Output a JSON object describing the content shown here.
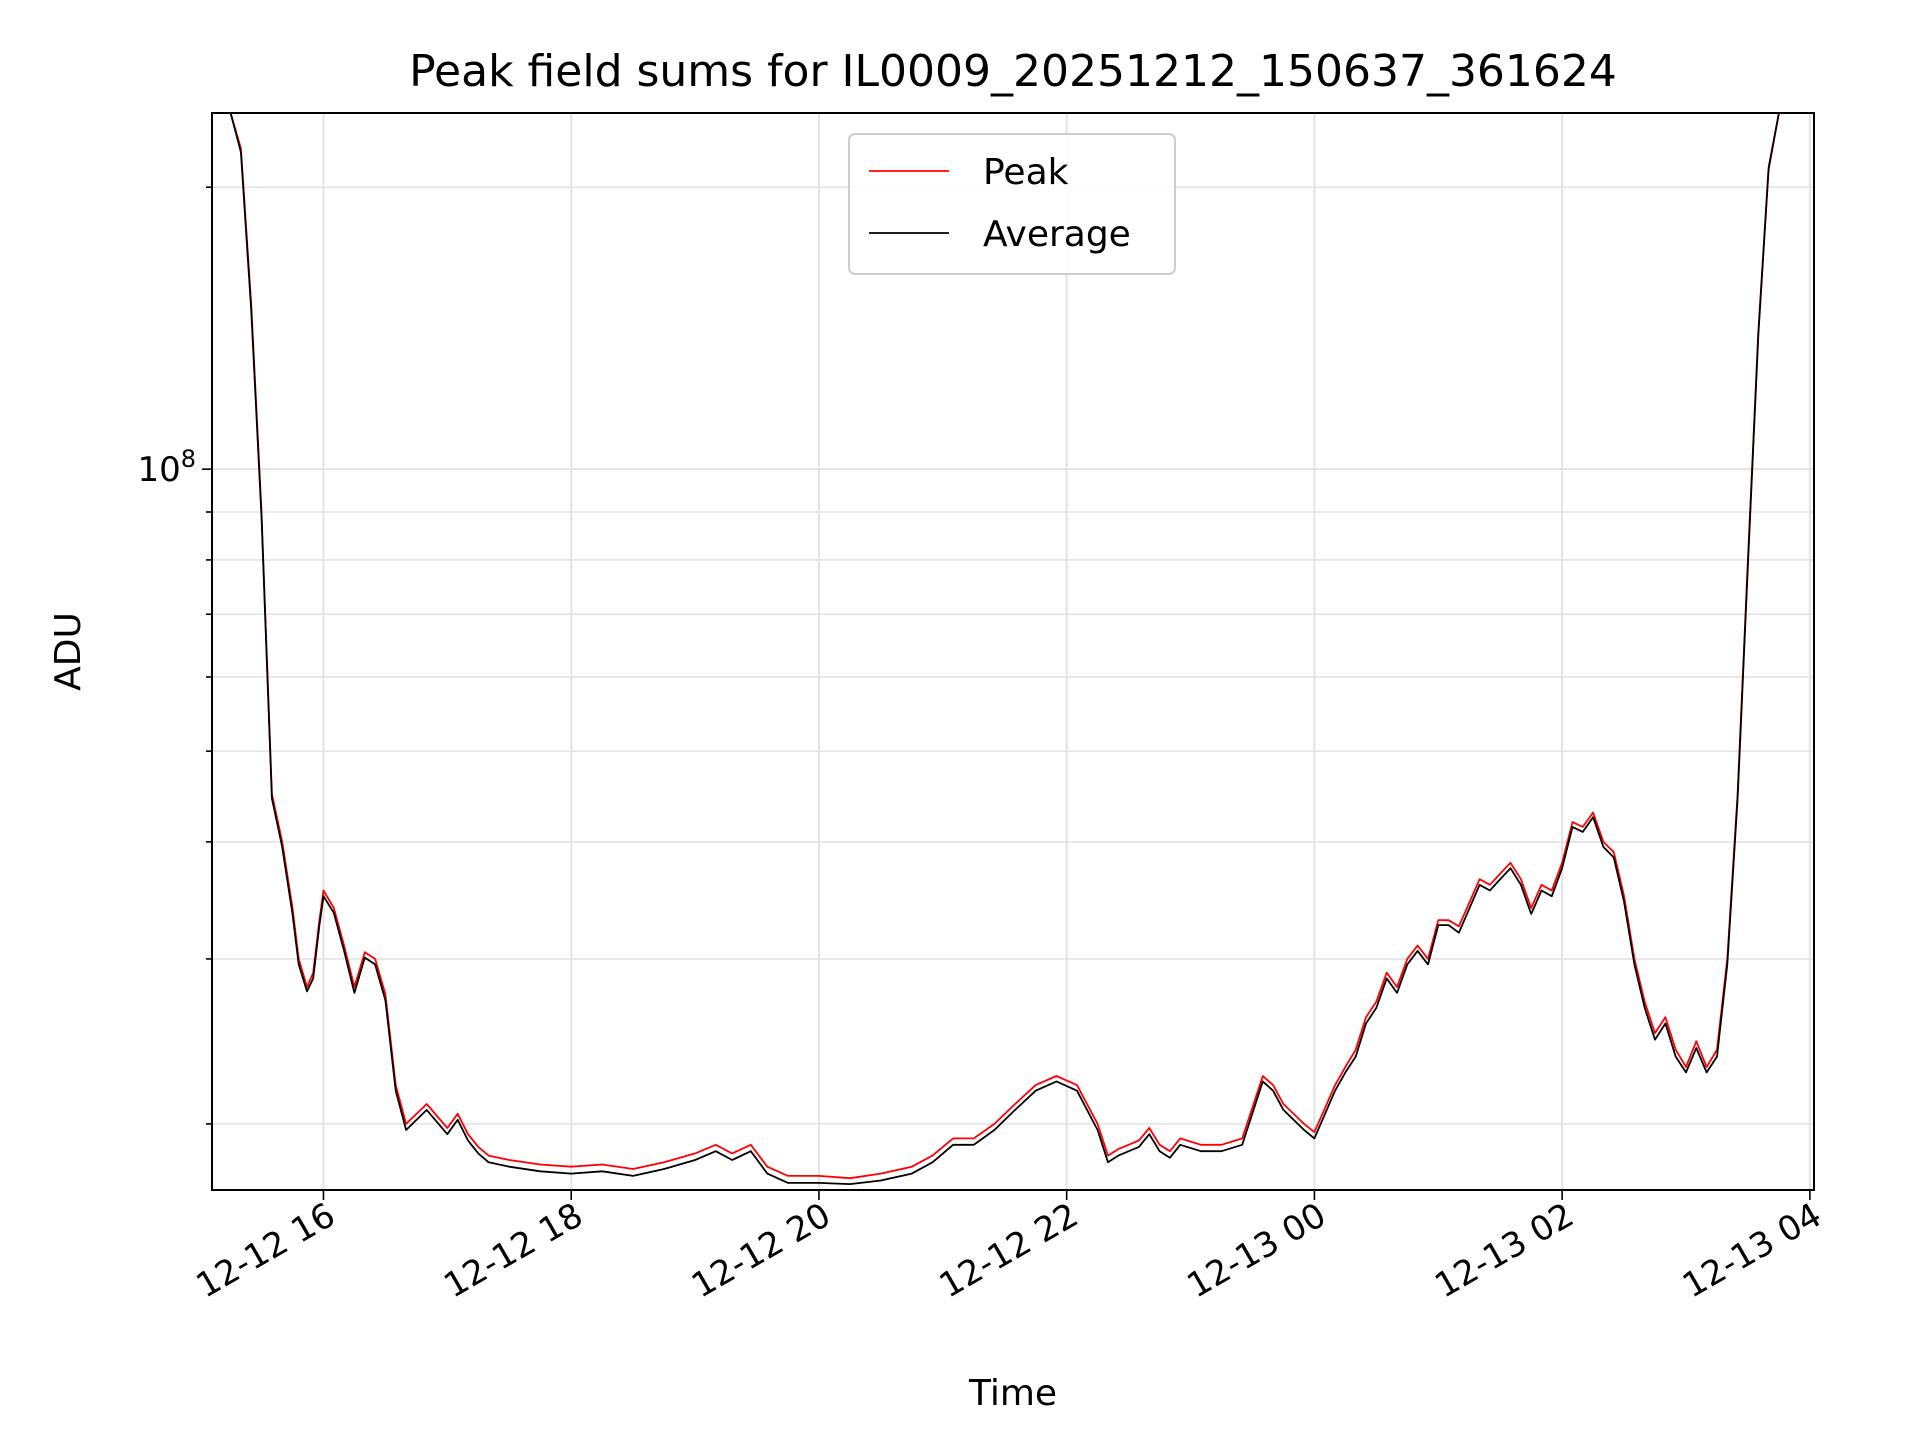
{
  "chart_data": {
    "type": "line",
    "title": "Peak field sums for IL0009_20251212_150637_361624",
    "xlabel": "Time",
    "ylabel": "ADU",
    "y_scale": "log",
    "grid": true,
    "legend": "top-center",
    "xlim": [
      "2025-12-12 15:06",
      "2025-12-13 04:02"
    ],
    "ylim": [
      17000000,
      240000000
    ],
    "x_ticks": [
      "2025-12-12 16:00",
      "2025-12-12 18:00",
      "2025-12-12 20:00",
      "2025-12-12 22:00",
      "2025-12-13 00:00",
      "2025-12-13 02:00",
      "2025-12-13 04:00"
    ],
    "x_tick_labels": [
      "12-12 16",
      "12-12 18",
      "12-12 20",
      "12-12 22",
      "12-13 00",
      "12-13 02",
      "12-13 04"
    ],
    "y_major_tick": 100000000,
    "y_major_tick_label": "10^8",
    "y_major_tick_base": "10",
    "y_major_tick_exp": "8",
    "series": [
      {
        "name": "Peak",
        "color": "#ff0000",
        "x": [
          "2025-12-12 15:06",
          "2025-12-12 15:15",
          "2025-12-12 15:20",
          "2025-12-12 15:25",
          "2025-12-12 15:30",
          "2025-12-12 15:35",
          "2025-12-12 15:40",
          "2025-12-12 15:45",
          "2025-12-12 15:48",
          "2025-12-12 15:52",
          "2025-12-12 15:55",
          "2025-12-12 15:58",
          "2025-12-12 16:00",
          "2025-12-12 16:05",
          "2025-12-12 16:10",
          "2025-12-12 16:15",
          "2025-12-12 16:20",
          "2025-12-12 16:25",
          "2025-12-12 16:30",
          "2025-12-12 16:35",
          "2025-12-12 16:40",
          "2025-12-12 16:50",
          "2025-12-12 17:00",
          "2025-12-12 17:05",
          "2025-12-12 17:10",
          "2025-12-12 17:15",
          "2025-12-12 17:20",
          "2025-12-12 17:30",
          "2025-12-12 17:45",
          "2025-12-12 18:00",
          "2025-12-12 18:15",
          "2025-12-12 18:30",
          "2025-12-12 18:45",
          "2025-12-12 19:00",
          "2025-12-12 19:10",
          "2025-12-12 19:18",
          "2025-12-12 19:27",
          "2025-12-12 19:35",
          "2025-12-12 19:45",
          "2025-12-12 20:00",
          "2025-12-12 20:15",
          "2025-12-12 20:30",
          "2025-12-12 20:45",
          "2025-12-12 20:55",
          "2025-12-12 21:05",
          "2025-12-12 21:15",
          "2025-12-12 21:25",
          "2025-12-12 21:35",
          "2025-12-12 21:45",
          "2025-12-12 21:55",
          "2025-12-12 22:05",
          "2025-12-12 22:15",
          "2025-12-12 22:20",
          "2025-12-12 22:25",
          "2025-12-12 22:35",
          "2025-12-12 22:40",
          "2025-12-12 22:45",
          "2025-12-12 22:50",
          "2025-12-12 22:55",
          "2025-12-12 23:05",
          "2025-12-12 23:15",
          "2025-12-12 23:25",
          "2025-12-12 23:35",
          "2025-12-12 23:40",
          "2025-12-12 23:45",
          "2025-12-12 23:55",
          "2025-12-13 00:00",
          "2025-12-13 00:10",
          "2025-12-13 00:15",
          "2025-12-13 00:20",
          "2025-12-13 00:25",
          "2025-12-13 00:30",
          "2025-12-13 00:35",
          "2025-12-13 00:40",
          "2025-12-13 00:45",
          "2025-12-13 00:50",
          "2025-12-13 00:55",
          "2025-12-13 01:00",
          "2025-12-13 01:05",
          "2025-12-13 01:10",
          "2025-12-13 01:20",
          "2025-12-13 01:25",
          "2025-12-13 01:30",
          "2025-12-13 01:35",
          "2025-12-13 01:40",
          "2025-12-13 01:45",
          "2025-12-13 01:50",
          "2025-12-13 01:55",
          "2025-12-13 02:00",
          "2025-12-13 02:05",
          "2025-12-13 02:10",
          "2025-12-13 02:15",
          "2025-12-13 02:20",
          "2025-12-13 02:25",
          "2025-12-13 02:30",
          "2025-12-13 02:35",
          "2025-12-13 02:40",
          "2025-12-13 02:45",
          "2025-12-13 02:50",
          "2025-12-13 02:55",
          "2025-12-13 03:00",
          "2025-12-13 03:05",
          "2025-12-13 03:10",
          "2025-12-13 03:15",
          "2025-12-13 03:20",
          "2025-12-13 03:25",
          "2025-12-13 03:30",
          "2025-12-13 03:35",
          "2025-12-13 03:40",
          "2025-12-13 03:45",
          "2025-12-13 03:50",
          "2025-12-13 03:55",
          "2025-12-13 04:00"
        ],
        "values": [
          240000000,
          240000000,
          220000000,
          150000000,
          90000000,
          45000000,
          40000000,
          34000000,
          30000000,
          28000000,
          29000000,
          33000000,
          35500000,
          34000000,
          31000000,
          28000000,
          30500000,
          30000000,
          27500000,
          22000000,
          20000000,
          21000000,
          19800000,
          20500000,
          19500000,
          18900000,
          18500000,
          18300000,
          18100000,
          18000000,
          18100000,
          17900000,
          18200000,
          18600000,
          19000000,
          18600000,
          19000000,
          18000000,
          17600000,
          17600000,
          17500000,
          17700000,
          18000000,
          18500000,
          19300000,
          19300000,
          20000000,
          21000000,
          22000000,
          22500000,
          22000000,
          20000000,
          18500000,
          18800000,
          19200000,
          19800000,
          19000000,
          18700000,
          19300000,
          19000000,
          19000000,
          19300000,
          22500000,
          22000000,
          21000000,
          20000000,
          19600000,
          22000000,
          23000000,
          24000000,
          26000000,
          27000000,
          29000000,
          28000000,
          30000000,
          31000000,
          30000000,
          33000000,
          33000000,
          32500000,
          36500000,
          36000000,
          37000000,
          38000000,
          36500000,
          34000000,
          36000000,
          35500000,
          38000000,
          42000000,
          41500000,
          43000000,
          40000000,
          39000000,
          35000000,
          30000000,
          27000000,
          25000000,
          26000000,
          24000000,
          23000000,
          24500000,
          23000000,
          24000000,
          30000000,
          45000000,
          80000000,
          140000000,
          210000000,
          240000000,
          240000000,
          240000000,
          240000000
        ]
      },
      {
        "name": "Average",
        "color": "#000000",
        "x": [
          "2025-12-12 15:06",
          "2025-12-12 15:15",
          "2025-12-12 15:20",
          "2025-12-12 15:25",
          "2025-12-12 15:30",
          "2025-12-12 15:35",
          "2025-12-12 15:40",
          "2025-12-12 15:45",
          "2025-12-12 15:48",
          "2025-12-12 15:52",
          "2025-12-12 15:55",
          "2025-12-12 15:58",
          "2025-12-12 16:00",
          "2025-12-12 16:05",
          "2025-12-12 16:10",
          "2025-12-12 16:15",
          "2025-12-12 16:20",
          "2025-12-12 16:25",
          "2025-12-12 16:30",
          "2025-12-12 16:35",
          "2025-12-12 16:40",
          "2025-12-12 16:50",
          "2025-12-12 17:00",
          "2025-12-12 17:05",
          "2025-12-12 17:10",
          "2025-12-12 17:15",
          "2025-12-12 17:20",
          "2025-12-12 17:30",
          "2025-12-12 17:45",
          "2025-12-12 18:00",
          "2025-12-12 18:15",
          "2025-12-12 18:30",
          "2025-12-12 18:45",
          "2025-12-12 19:00",
          "2025-12-12 19:10",
          "2025-12-12 19:18",
          "2025-12-12 19:27",
          "2025-12-12 19:35",
          "2025-12-12 19:45",
          "2025-12-12 20:00",
          "2025-12-12 20:15",
          "2025-12-12 20:30",
          "2025-12-12 20:45",
          "2025-12-12 20:55",
          "2025-12-12 21:05",
          "2025-12-12 21:15",
          "2025-12-12 21:25",
          "2025-12-12 21:35",
          "2025-12-12 21:45",
          "2025-12-12 21:55",
          "2025-12-12 22:05",
          "2025-12-12 22:15",
          "2025-12-12 22:20",
          "2025-12-12 22:25",
          "2025-12-12 22:35",
          "2025-12-12 22:40",
          "2025-12-12 22:45",
          "2025-12-12 22:50",
          "2025-12-12 22:55",
          "2025-12-12 23:05",
          "2025-12-12 23:15",
          "2025-12-12 23:25",
          "2025-12-12 23:35",
          "2025-12-12 23:40",
          "2025-12-12 23:45",
          "2025-12-12 23:55",
          "2025-12-13 00:00",
          "2025-12-13 00:10",
          "2025-12-13 00:15",
          "2025-12-13 00:20",
          "2025-12-13 00:25",
          "2025-12-13 00:30",
          "2025-12-13 00:35",
          "2025-12-13 00:40",
          "2025-12-13 00:45",
          "2025-12-13 00:50",
          "2025-12-13 00:55",
          "2025-12-13 01:00",
          "2025-12-13 01:05",
          "2025-12-13 01:10",
          "2025-12-13 01:20",
          "2025-12-13 01:25",
          "2025-12-13 01:30",
          "2025-12-13 01:35",
          "2025-12-13 01:40",
          "2025-12-13 01:45",
          "2025-12-13 01:50",
          "2025-12-13 01:55",
          "2025-12-13 02:00",
          "2025-12-13 02:05",
          "2025-12-13 02:10",
          "2025-12-13 02:15",
          "2025-12-13 02:20",
          "2025-12-13 02:25",
          "2025-12-13 02:30",
          "2025-12-13 02:35",
          "2025-12-13 02:40",
          "2025-12-13 02:45",
          "2025-12-13 02:50",
          "2025-12-13 02:55",
          "2025-12-13 03:00",
          "2025-12-13 03:05",
          "2025-12-13 03:10",
          "2025-12-13 03:15",
          "2025-12-13 03:20",
          "2025-12-13 03:25",
          "2025-12-13 03:30",
          "2025-12-13 03:35",
          "2025-12-13 03:40",
          "2025-12-13 03:45",
          "2025-12-13 03:50",
          "2025-12-13 03:55",
          "2025-12-13 04:00"
        ],
        "values": [
          240000000,
          240000000,
          218000000,
          148000000,
          89000000,
          44500000,
          39500000,
          33500000,
          29600000,
          27700000,
          28600000,
          32600000,
          35000000,
          33600000,
          30600000,
          27600000,
          30100000,
          29600000,
          27100000,
          21700000,
          19700000,
          20700000,
          19500000,
          20200000,
          19200000,
          18600000,
          18200000,
          18000000,
          17800000,
          17700000,
          17800000,
          17600000,
          17900000,
          18300000,
          18700000,
          18300000,
          18700000,
          17700000,
          17300000,
          17300000,
          17250000,
          17400000,
          17700000,
          18200000,
          19000000,
          19000000,
          19700000,
          20700000,
          21700000,
          22200000,
          21700000,
          19700000,
          18200000,
          18500000,
          18900000,
          19500000,
          18700000,
          18400000,
          19000000,
          18700000,
          18700000,
          19000000,
          22200000,
          21700000,
          20700000,
          19700000,
          19300000,
          21700000,
          22700000,
          23600000,
          25600000,
          26600000,
          28600000,
          27600000,
          29600000,
          30600000,
          29600000,
          32600000,
          32600000,
          32000000,
          36000000,
          35500000,
          36500000,
          37500000,
          36000000,
          33500000,
          35500000,
          35000000,
          37500000,
          41500000,
          41000000,
          42500000,
          39500000,
          38500000,
          34500000,
          29600000,
          26600000,
          24600000,
          25600000,
          23600000,
          22700000,
          24100000,
          22700000,
          23600000,
          29600000,
          44500000,
          79000000,
          139000000,
          209000000,
          240000000,
          240000000,
          240000000,
          240000000
        ]
      }
    ]
  }
}
